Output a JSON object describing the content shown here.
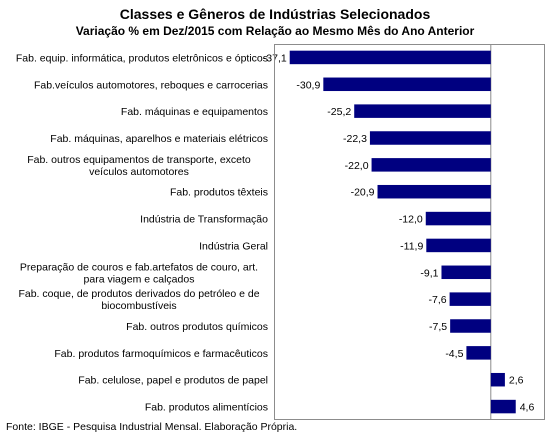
{
  "chart_data": {
    "type": "bar",
    "orientation": "horizontal",
    "title": "Classes e Gêneros de Indústrias Selecionados",
    "subtitle": "Variação % em Dez/2015 com Relação ao Mesmo Mês do Ano Anterior",
    "categories": [
      "Fab. equip. informática, produtos eletrônicos e ópticos",
      "Fab.veículos automotores, reboques e carrocerias",
      "Fab. máquinas e equipamentos",
      "Fab. máquinas, aparelhos e materiais elétricos",
      "Fab. outros equipamentos de transporte, exceto veículos automotores",
      "Fab. produtos têxteis",
      "Indústria de Transformação",
      "Indústria Geral",
      "Preparação de couros e fab.artefatos de couro, art. para viagem e calçados",
      "Fab. coque, de produtos derivados do petróleo e de biocombustíveis",
      "Fab. outros produtos químicos",
      "Fab. produtos farmoquímicos e farmacêuticos",
      "Fab. celulose, papel e produtos de papel",
      "Fab. produtos alimentícios"
    ],
    "category_lines": [
      [
        "Fab. equip. informática, produtos eletrônicos e ópticos"
      ],
      [
        "Fab.veículos automotores, reboques e carrocerias"
      ],
      [
        "Fab. máquinas e equipamentos"
      ],
      [
        "Fab. máquinas, aparelhos e materiais elétricos"
      ],
      [
        "Fab. outros equipamentos de transporte, exceto",
        "veículos automotores"
      ],
      [
        "Fab. produtos têxteis"
      ],
      [
        "Indústria de Transformação"
      ],
      [
        "Indústria Geral"
      ],
      [
        "Preparação de couros e fab.artefatos de couro, art.",
        "para viagem e calçados"
      ],
      [
        "Fab. coque, de produtos derivados do petróleo e de",
        "biocombustíveis"
      ],
      [
        "Fab. outros produtos químicos"
      ],
      [
        "Fab. produtos farmoquímicos e farmacêuticos"
      ],
      [
        "Fab. celulose, papel e produtos de papel"
      ],
      [
        "Fab. produtos alimentícios"
      ]
    ],
    "values": [
      -37.1,
      -30.9,
      -25.2,
      -22.3,
      -22.0,
      -20.9,
      -12.0,
      -11.9,
      -9.1,
      -7.6,
      -7.5,
      -4.5,
      2.6,
      4.6
    ],
    "data_labels": [
      "-37,1",
      "-30,9",
      "-25,2",
      "-22,3",
      "-22,0",
      "-20,9",
      "-12,0",
      "-11,9",
      "-9,1",
      "-7,6",
      "-7,5",
      "-4,5",
      "2,6",
      "4,6"
    ],
    "xlim": [
      -40,
      10
    ],
    "bar_color": "#000080",
    "grid": false,
    "legend": "none"
  },
  "source": "Fonte: IBGE - Pesquisa Industrial Mensal. Elaboração Própria."
}
